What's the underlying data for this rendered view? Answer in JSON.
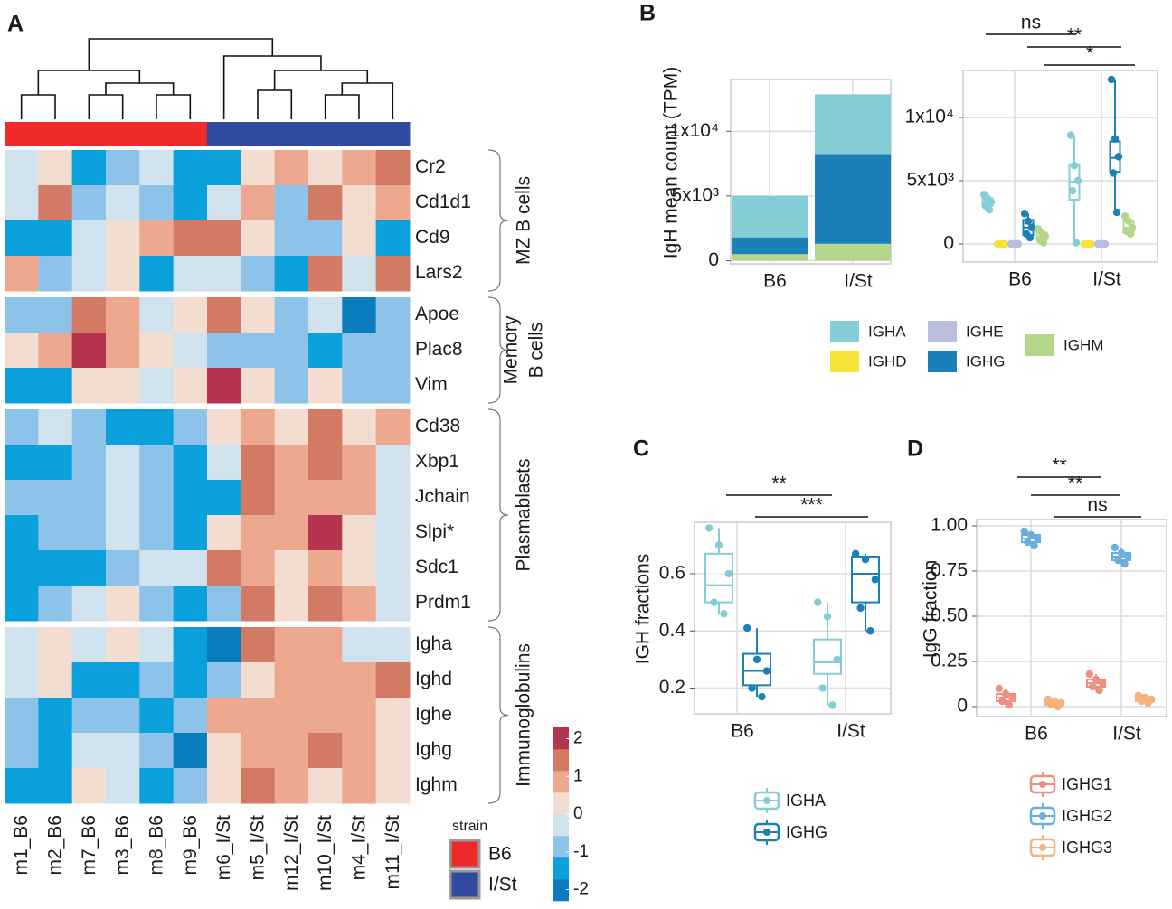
{
  "chart_data": [
    {
      "type": "heatmap",
      "panel": "A",
      "columns": [
        "m1_B6",
        "m2_B6",
        "m7_B6",
        "m3_B6",
        "m8_B6",
        "m9_B6",
        "m6_I/St",
        "m5_I/St",
        "m12_I/St",
        "m10_I/St",
        "m4_I/St",
        "m11_I/St"
      ],
      "groups": [
        {
          "label": [
            "MZ B cells"
          ],
          "rows": [
            "Cr2",
            "Cd1d1",
            "Cd9",
            "Lars2"
          ],
          "values": [
            [
              -0.4,
              0.4,
              -1.5,
              -1,
              -0.4,
              -1.5,
              -1.5,
              0.4,
              1,
              0.4,
              1,
              1.6
            ],
            [
              -0.4,
              1.6,
              -1,
              -0.4,
              -1,
              -1.5,
              -0.4,
              1,
              -1,
              1.6,
              0.4,
              1
            ],
            [
              -1.5,
              -1.5,
              -0.4,
              0.4,
              1,
              1.6,
              1.6,
              0.4,
              -1,
              -1,
              0.4,
              -1.5
            ],
            [
              1,
              -1,
              -0.4,
              0.4,
              -1.5,
              -0.4,
              -0.4,
              -1,
              -1.5,
              1.6,
              -0.4,
              1.6
            ]
          ]
        },
        {
          "label": [
            "Memory",
            "B cells"
          ],
          "rows": [
            "Apoe",
            "Plac8",
            "Vim"
          ],
          "values": [
            [
              -1,
              -1,
              1.6,
              1,
              -0.4,
              0.4,
              1.6,
              0.4,
              -1,
              -0.4,
              -2,
              -1
            ],
            [
              0.4,
              1,
              2.2,
              1,
              0.4,
              -0.4,
              -1,
              -1,
              -1,
              -1.5,
              -1,
              -1
            ],
            [
              -1.5,
              -1.5,
              0.4,
              0.4,
              -0.4,
              0.4,
              2.2,
              0.4,
              -1,
              0.4,
              -1,
              -1
            ]
          ]
        },
        {
          "label": [
            "Plasmablasts"
          ],
          "rows": [
            "Cd38",
            "Xbp1",
            "Jchain",
            "Slpi*",
            "Sdc1",
            "Prdm1"
          ],
          "values": [
            [
              -1,
              -0.4,
              -1,
              -1.5,
              -1.5,
              -1,
              0.4,
              1,
              0.4,
              1.6,
              0.4,
              1
            ],
            [
              -1.5,
              -1.5,
              -1,
              -0.4,
              -1,
              -1.5,
              -0.4,
              1.6,
              1,
              1.6,
              1,
              -0.4
            ],
            [
              -1,
              -1,
              -1,
              -0.4,
              -1,
              -1.5,
              -1.5,
              1.6,
              1,
              1,
              1,
              -0.4
            ],
            [
              -1.5,
              -1,
              -1,
              -0.4,
              -1,
              -1.5,
              0.4,
              1,
              1,
              2.2,
              0.4,
              -0.4
            ],
            [
              -1.5,
              -1.5,
              -1.5,
              -1,
              -0.4,
              -0.4,
              1.6,
              1,
              0.4,
              1,
              0.4,
              -0.4
            ],
            [
              -1.5,
              -1,
              -0.4,
              0.4,
              -1,
              -1.5,
              -1,
              1.6,
              0.4,
              1.6,
              1,
              -0.4
            ]
          ]
        },
        {
          "label": [
            "Immunoglobulins"
          ],
          "rows": [
            "Igha",
            "Ighd",
            "Ighe",
            "Ighg",
            "Ighm"
          ],
          "values": [
            [
              -0.4,
              0.4,
              -0.4,
              0.4,
              -0.4,
              -1.5,
              -2,
              1.6,
              1,
              1,
              -0.4,
              -0.4
            ],
            [
              -0.4,
              0.4,
              -1.5,
              -1.5,
              -1,
              -1.5,
              -1,
              0.4,
              1,
              1,
              1,
              1.6
            ],
            [
              -1,
              -1.5,
              -1,
              -1,
              -1.5,
              -1,
              1,
              1,
              1,
              1,
              1,
              0.4
            ],
            [
              -1,
              -1.5,
              -0.4,
              -0.4,
              -1,
              -2,
              0.4,
              1,
              1,
              1.6,
              1,
              0.4
            ],
            [
              -1.5,
              -1.5,
              0.4,
              -0.4,
              -1.5,
              -1,
              0.4,
              1.6,
              1,
              0.4,
              1,
              0.4
            ]
          ]
        }
      ],
      "zlim": [
        -2.3,
        2.3
      ],
      "zticks": [
        -2,
        -1,
        0,
        1,
        2
      ],
      "colors": [
        "#0b7dbf",
        "#0aa0db",
        "#8dc3e8",
        "#cfe2ee",
        "#f3dcd0",
        "#eca98f",
        "#d37a65",
        "#b5344f"
      ],
      "strain_legend": {
        "title": "strain",
        "entries": [
          {
            "name": "B6",
            "color": "#ee2a2a"
          },
          {
            "name": "I/St",
            "color": "#2f4aa0"
          }
        ]
      }
    },
    {
      "type": "bar",
      "stacked": true,
      "panel": "B",
      "ylabel": "IgH mean count (TPM)",
      "categories": [
        "B6",
        "I/St"
      ],
      "series": [
        {
          "name": "IGHA",
          "color": "#84cdd7",
          "values": [
            3200,
            4600
          ]
        },
        {
          "name": "IGHD",
          "color": "#f5e33a",
          "values": [
            0,
            0
          ]
        },
        {
          "name": "IGHE",
          "color": "#b9bddf",
          "values": [
            0,
            0
          ]
        },
        {
          "name": "IGHG",
          "color": "#1b80b6",
          "values": [
            1300,
            6950
          ]
        },
        {
          "name": "IGHM",
          "color": "#b4d68a",
          "values": [
            500,
            1300
          ]
        }
      ],
      "ylim": [
        -250,
        14000
      ],
      "yticks": [
        0,
        {
          "value": 5000,
          "label": "5x10³"
        },
        {
          "value": 10000,
          "label": "1x10⁴"
        }
      ],
      "grid": true
    },
    {
      "type": "box",
      "categories": [
        "B6",
        "I/St"
      ],
      "series": [
        {
          "color": "#84cdd7",
          "boxes": [
            {
              "min": 2700,
              "q1": 3000,
              "median": 3300,
              "q3": 3600,
              "max": 3900,
              "points": [
                3900,
                3600,
                3300,
                3000,
                2700
              ]
            },
            {
              "min": 100,
              "q1": 3500,
              "median": 4900,
              "q3": 6300,
              "max": 8600,
              "points": [
                8600,
                6200,
                5000,
                4200,
                100
              ]
            }
          ]
        },
        {
          "color": "#f5e33a",
          "boxes": [
            {
              "min": 0,
              "q1": 0,
              "median": 0,
              "q3": 0,
              "max": 0,
              "points": [
                0,
                0,
                0,
                0,
                0
              ]
            },
            {
              "min": 0,
              "q1": 0,
              "median": 0,
              "q3": 0,
              "max": 0,
              "points": [
                0,
                0,
                0,
                0,
                0
              ]
            }
          ]
        },
        {
          "color": "#b9bddf",
          "boxes": [
            {
              "min": 0,
              "q1": 0,
              "median": 0,
              "q3": 0,
              "max": 0,
              "points": [
                0,
                0,
                0,
                0,
                0
              ]
            },
            {
              "min": 0,
              "q1": 0,
              "median": 0,
              "q3": 0,
              "max": 0,
              "points": [
                0,
                0,
                0,
                0,
                0
              ]
            }
          ]
        },
        {
          "color": "#1b80b6",
          "boxes": [
            {
              "min": 500,
              "q1": 700,
              "median": 1300,
              "q3": 1900,
              "max": 2400,
              "points": [
                2400,
                1800,
                1300,
                800,
                500
              ]
            },
            {
              "min": 2500,
              "q1": 5700,
              "median": 6800,
              "q3": 8100,
              "max": 13000,
              "points": [
                13000,
                8300,
                6900,
                5600,
                2500
              ]
            }
          ]
        },
        {
          "color": "#b4d68a",
          "boxes": [
            {
              "min": 100,
              "q1": 300,
              "median": 600,
              "q3": 900,
              "max": 1200,
              "points": [
                1200,
                900,
                600,
                300,
                100
              ]
            },
            {
              "min": 800,
              "q1": 900,
              "median": 1300,
              "q3": 1800,
              "max": 2200,
              "points": [
                2200,
                1800,
                1300,
                1000,
                800
              ]
            }
          ]
        }
      ],
      "ylim": [
        -1430,
        13710
      ],
      "yticks": [
        0,
        {
          "value": 5000,
          "label": "5x10³"
        },
        {
          "value": 10000,
          "label": "1x10⁴"
        }
      ],
      "grid": true,
      "annotations": [
        "ns",
        "**",
        "*"
      ]
    },
    {
      "type": "box",
      "panel": "C",
      "ylabel": "IGH fractions",
      "categories": [
        "B6",
        "I/St"
      ],
      "series": [
        {
          "name": "IGHA",
          "color": "#84cdd7",
          "boxes": [
            {
              "min": 0.46,
              "q1": 0.5,
              "median": 0.56,
              "q3": 0.67,
              "max": 0.76,
              "points": [
                0.76,
                0.7,
                0.6,
                0.5,
                0.46
              ]
            },
            {
              "min": 0.14,
              "q1": 0.25,
              "median": 0.29,
              "q3": 0.37,
              "max": 0.5,
              "points": [
                0.5,
                0.45,
                0.3,
                0.2,
                0.14
              ]
            }
          ]
        },
        {
          "name": "IGHG",
          "color": "#1b80b6",
          "boxes": [
            {
              "min": 0.17,
              "q1": 0.21,
              "median": 0.26,
              "q3": 0.32,
              "max": 0.41,
              "points": [
                0.41,
                0.3,
                0.26,
                0.2,
                0.17
              ]
            },
            {
              "min": 0.4,
              "q1": 0.5,
              "median": 0.6,
              "q3": 0.66,
              "max": 0.67,
              "points": [
                0.67,
                0.65,
                0.58,
                0.48,
                0.4
              ]
            }
          ]
        }
      ],
      "ylim": [
        0.11,
        0.78
      ],
      "yticks": [
        0.2,
        0.4,
        0.6
      ],
      "grid": true,
      "annotations": [
        "**",
        "***"
      ]
    },
    {
      "type": "box",
      "panel": "D",
      "ylabel": "IgG fraction",
      "categories": [
        "B6",
        "I/St"
      ],
      "series": [
        {
          "name": "IGHG1",
          "color": "#ef8f7f",
          "boxes": [
            {
              "min": 0.01,
              "q1": 0.03,
              "median": 0.05,
              "q3": 0.07,
              "max": 0.1,
              "points": [
                0.1,
                0.07,
                0.05,
                0.03,
                0.01
              ]
            },
            {
              "min": 0.09,
              "q1": 0.11,
              "median": 0.13,
              "q3": 0.15,
              "max": 0.18,
              "points": [
                0.18,
                0.15,
                0.13,
                0.11,
                0.09
              ]
            }
          ]
        },
        {
          "name": "IGHG2",
          "color": "#6aaee0",
          "boxes": [
            {
              "min": 0.89,
              "q1": 0.91,
              "median": 0.93,
              "q3": 0.95,
              "max": 0.97,
              "points": [
                0.97,
                0.95,
                0.93,
                0.91,
                0.89
              ]
            },
            {
              "min": 0.79,
              "q1": 0.81,
              "median": 0.83,
              "q3": 0.85,
              "max": 0.88,
              "points": [
                0.88,
                0.85,
                0.83,
                0.81,
                0.79
              ]
            }
          ]
        },
        {
          "name": "IGHG3",
          "color": "#f5b27a",
          "boxes": [
            {
              "min": 0,
              "q1": 0.01,
              "median": 0.02,
              "q3": 0.03,
              "max": 0.04,
              "points": [
                0.04,
                0.03,
                0.02,
                0.01,
                0
              ]
            },
            {
              "min": 0.02,
              "q1": 0.03,
              "median": 0.04,
              "q3": 0.05,
              "max": 0.06,
              "points": [
                0.06,
                0.05,
                0.04,
                0.03,
                0.02
              ]
            }
          ]
        }
      ],
      "ylim": [
        -0.055,
        1.035
      ],
      "yticks": [
        0,
        0.25,
        {
          "value": 0.5,
          "label": "0.50"
        },
        0.75,
        {
          "value": 1,
          "label": "1.00"
        }
      ],
      "grid": true,
      "annotations": [
        "**",
        "**",
        "ns"
      ]
    }
  ]
}
